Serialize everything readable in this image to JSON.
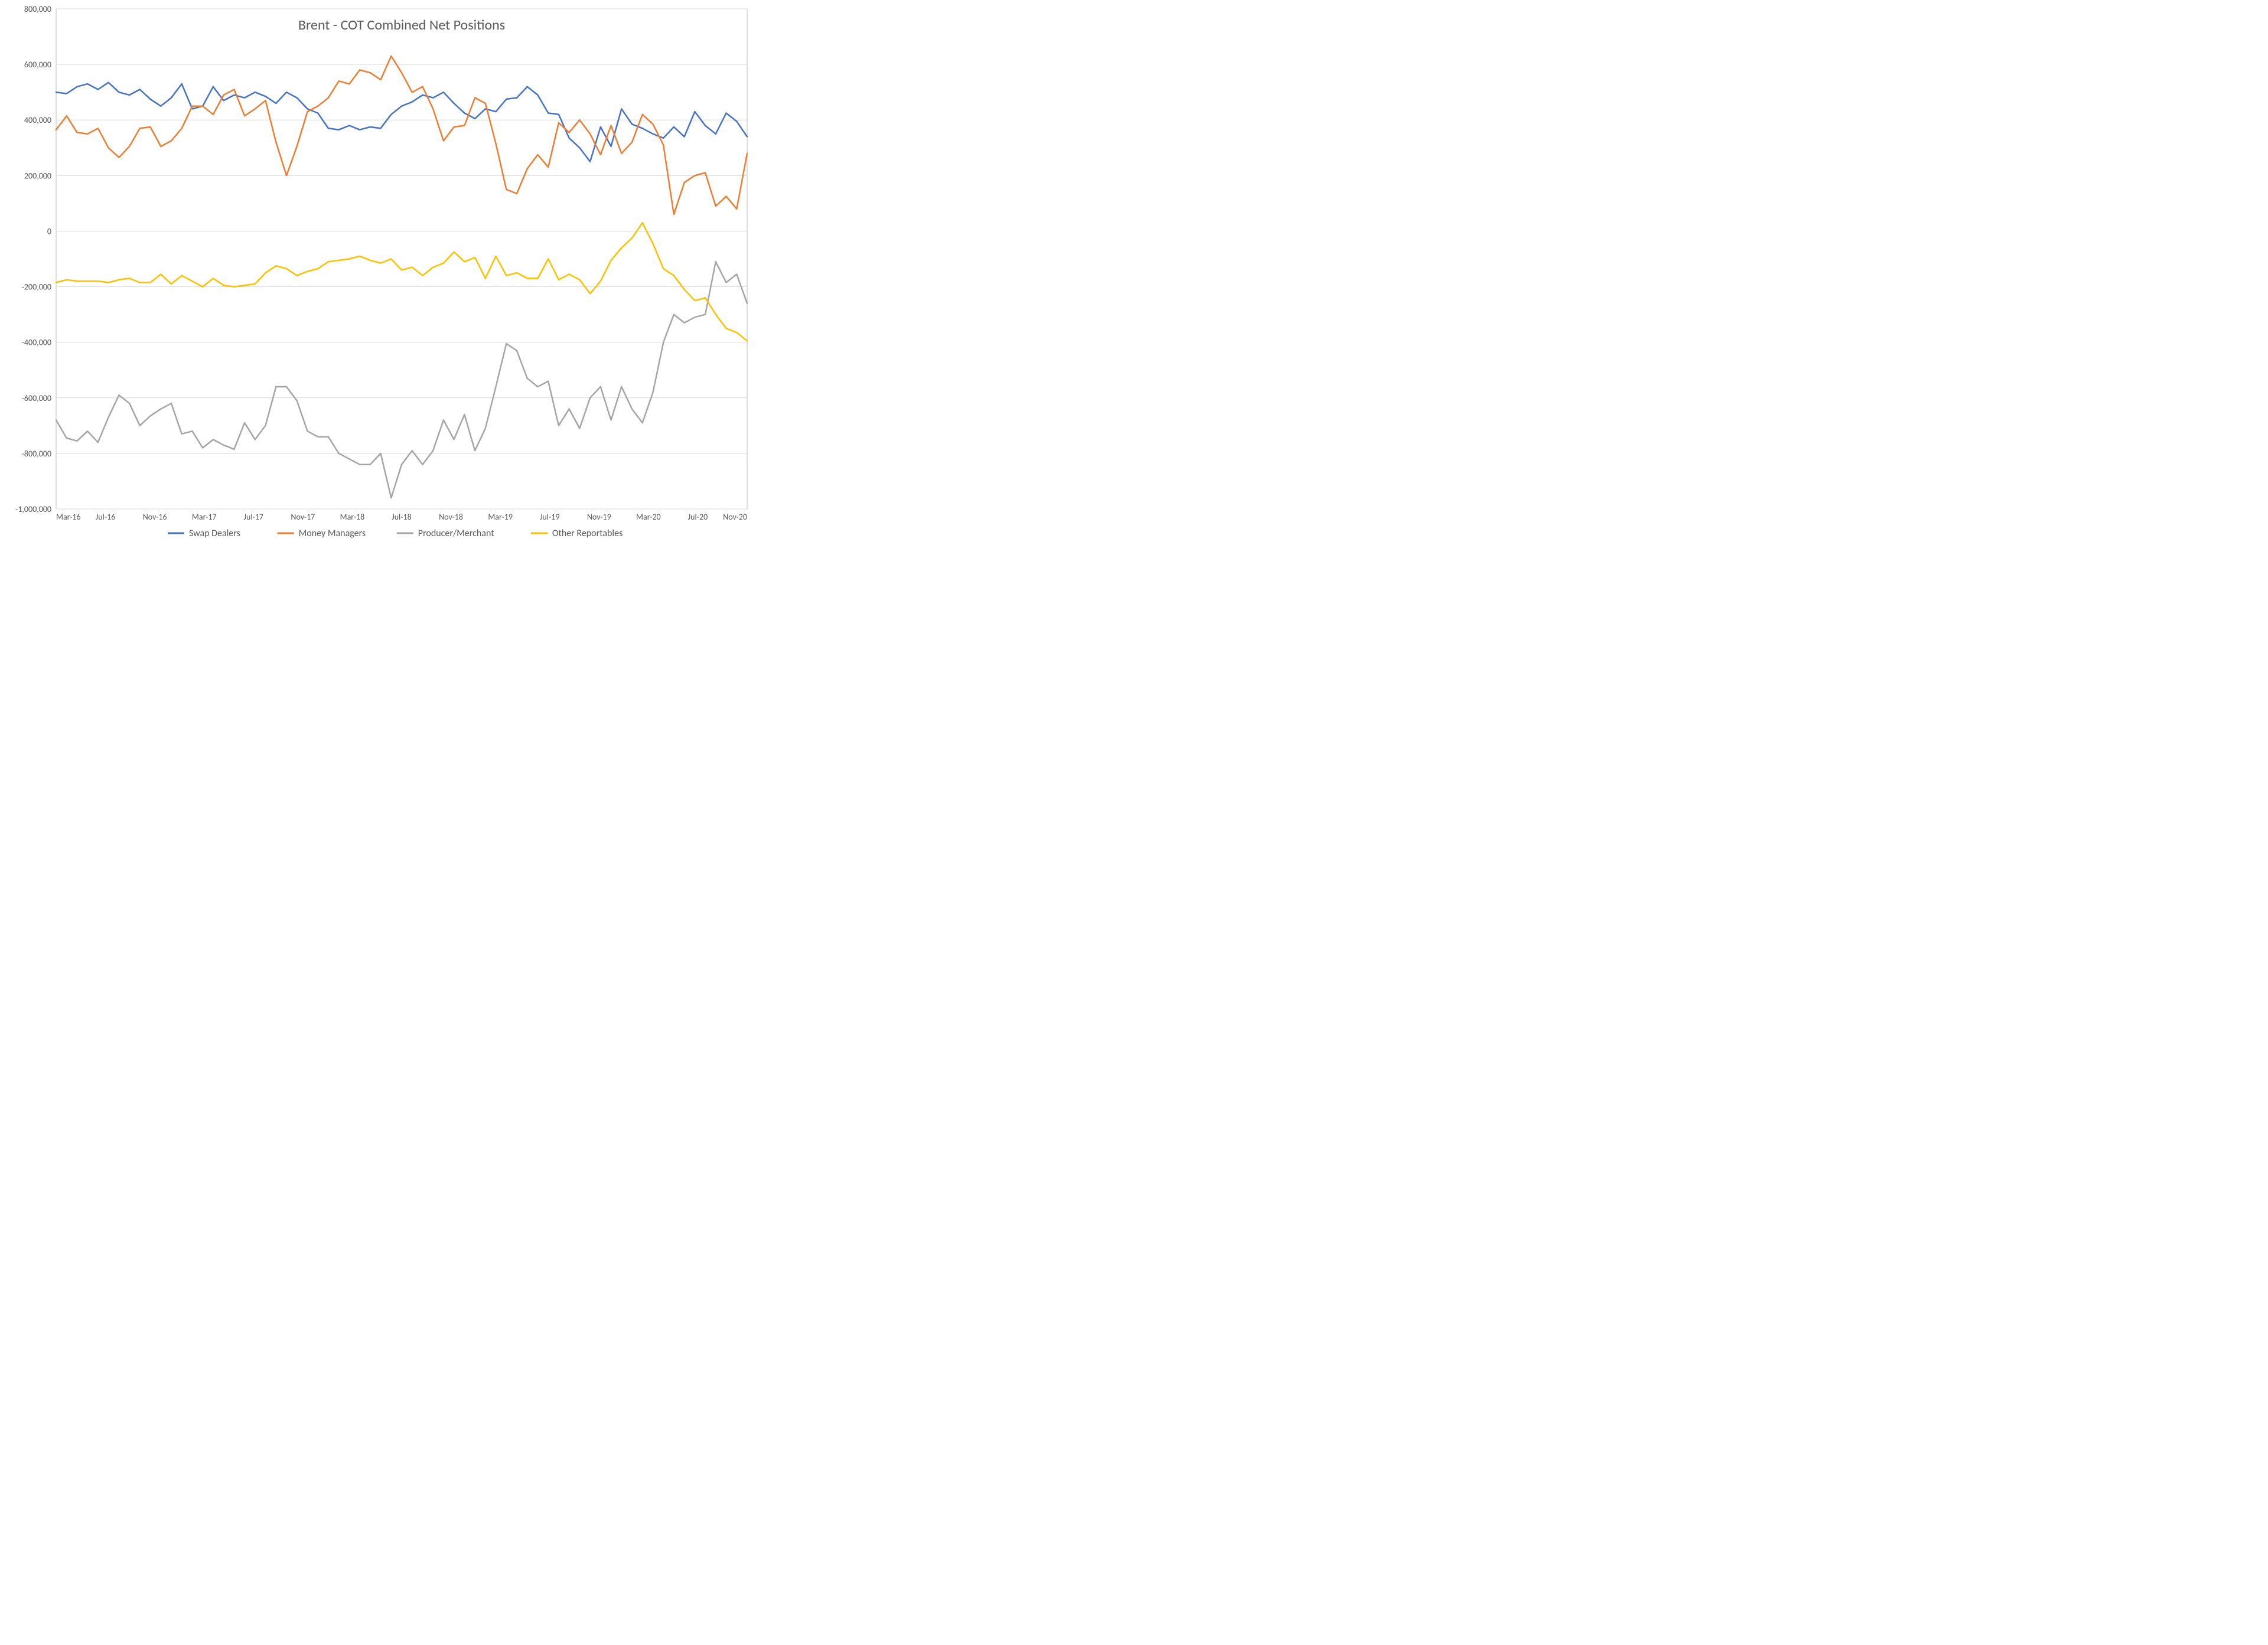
{
  "chart": {
    "type": "line",
    "title": "Brent - COT Combined Net Positions",
    "title_fontsize": 24,
    "title_color": "#595959",
    "background_color": "#ffffff",
    "plot_border_color": "#bfbfbf",
    "grid_color": "#d9d9d9",
    "axis_label_color": "#595959",
    "axis_label_fontsize": 14,
    "line_width": 2.5,
    "y_axis": {
      "min": -1000000,
      "max": 800000,
      "tick_step": 200000,
      "tick_labels": [
        "-1,000,000",
        "-800,000",
        "-600,000",
        "-400,000",
        "-200,000",
        "0",
        "200,000",
        "400,000",
        "600,000",
        "800,000"
      ]
    },
    "x_axis": {
      "min": 0,
      "max": 56,
      "tick_step": 4,
      "tick_labels": [
        "Mar-16",
        "Jul-16",
        "Nov-16",
        "Mar-17",
        "Jul-17",
        "Nov-17",
        "Mar-18",
        "Jul-18",
        "Nov-18",
        "Mar-19",
        "Jul-19",
        "Nov-19",
        "Mar-20",
        "Jul-20",
        "Nov-20"
      ]
    },
    "legend": {
      "position": "bottom",
      "fontsize": 16,
      "line_length": 28
    },
    "series": [
      {
        "name": "Swap Dealers",
        "color": "#4472c4",
        "values": [
          500000,
          495000,
          520000,
          530000,
          510000,
          535000,
          500000,
          490000,
          510000,
          475000,
          450000,
          480000,
          530000,
          440000,
          450000,
          520000,
          470000,
          490000,
          480000,
          500000,
          485000,
          460000,
          500000,
          480000,
          440000,
          425000,
          370000,
          365000,
          380000,
          365000,
          375000,
          370000,
          420000,
          450000,
          465000,
          490000,
          480000,
          500000,
          460000,
          425000,
          405000,
          440000,
          430000,
          475000,
          480000,
          520000,
          490000,
          425000,
          420000,
          335000,
          300000,
          250000,
          375000,
          305000,
          440000,
          385000,
          370000,
          350000,
          335000,
          375000,
          340000,
          430000,
          380000,
          350000,
          425000,
          395000,
          340000
        ]
      },
      {
        "name": "Money Managers",
        "color": "#ed7d31",
        "values": [
          365000,
          415000,
          355000,
          350000,
          370000,
          300000,
          265000,
          305000,
          370000,
          375000,
          305000,
          325000,
          370000,
          450000,
          450000,
          420000,
          490000,
          510000,
          415000,
          440000,
          470000,
          320000,
          200000,
          305000,
          430000,
          450000,
          480000,
          540000,
          530000,
          580000,
          570000,
          545000,
          630000,
          570000,
          500000,
          520000,
          440000,
          325000,
          375000,
          380000,
          480000,
          460000,
          315000,
          150000,
          135000,
          225000,
          275000,
          230000,
          390000,
          355000,
          400000,
          350000,
          275000,
          380000,
          280000,
          320000,
          420000,
          385000,
          310000,
          60000,
          175000,
          200000,
          210000,
          90000,
          125000,
          80000,
          280000
        ]
      },
      {
        "name": "Producer/Merchant",
        "color": "#a5a5a5",
        "values": [
          -680000,
          -745000,
          -755000,
          -720000,
          -760000,
          -670000,
          -590000,
          -620000,
          -700000,
          -665000,
          -640000,
          -620000,
          -730000,
          -720000,
          -780000,
          -750000,
          -770000,
          -785000,
          -690000,
          -750000,
          -700000,
          -560000,
          -560000,
          -610000,
          -720000,
          -740000,
          -740000,
          -800000,
          -820000,
          -840000,
          -840000,
          -800000,
          -960000,
          -840000,
          -790000,
          -840000,
          -790000,
          -680000,
          -750000,
          -660000,
          -790000,
          -710000,
          -560000,
          -405000,
          -430000,
          -530000,
          -560000,
          -540000,
          -700000,
          -640000,
          -710000,
          -600000,
          -560000,
          -680000,
          -560000,
          -640000,
          -690000,
          -580000,
          -400000,
          -300000,
          -330000,
          -310000,
          -300000,
          -110000,
          -185000,
          -155000,
          -260000
        ]
      },
      {
        "name": "Other Reportables",
        "color": "#ffc000",
        "values": [
          -185000,
          -175000,
          -180000,
          -180000,
          -180000,
          -185000,
          -175000,
          -170000,
          -185000,
          -185000,
          -155000,
          -190000,
          -160000,
          -180000,
          -200000,
          -170000,
          -195000,
          -200000,
          -195000,
          -190000,
          -150000,
          -125000,
          -135000,
          -160000,
          -145000,
          -135000,
          -110000,
          -105000,
          -100000,
          -90000,
          -105000,
          -115000,
          -100000,
          -140000,
          -130000,
          -160000,
          -130000,
          -115000,
          -75000,
          -110000,
          -95000,
          -170000,
          -90000,
          -160000,
          -150000,
          -170000,
          -170000,
          -100000,
          -175000,
          -155000,
          -175000,
          -225000,
          -180000,
          -105000,
          -60000,
          -25000,
          30000,
          -45000,
          -135000,
          -160000,
          -210000,
          -250000,
          -240000,
          -300000,
          -350000,
          -365000,
          -395000
        ]
      }
    ]
  }
}
